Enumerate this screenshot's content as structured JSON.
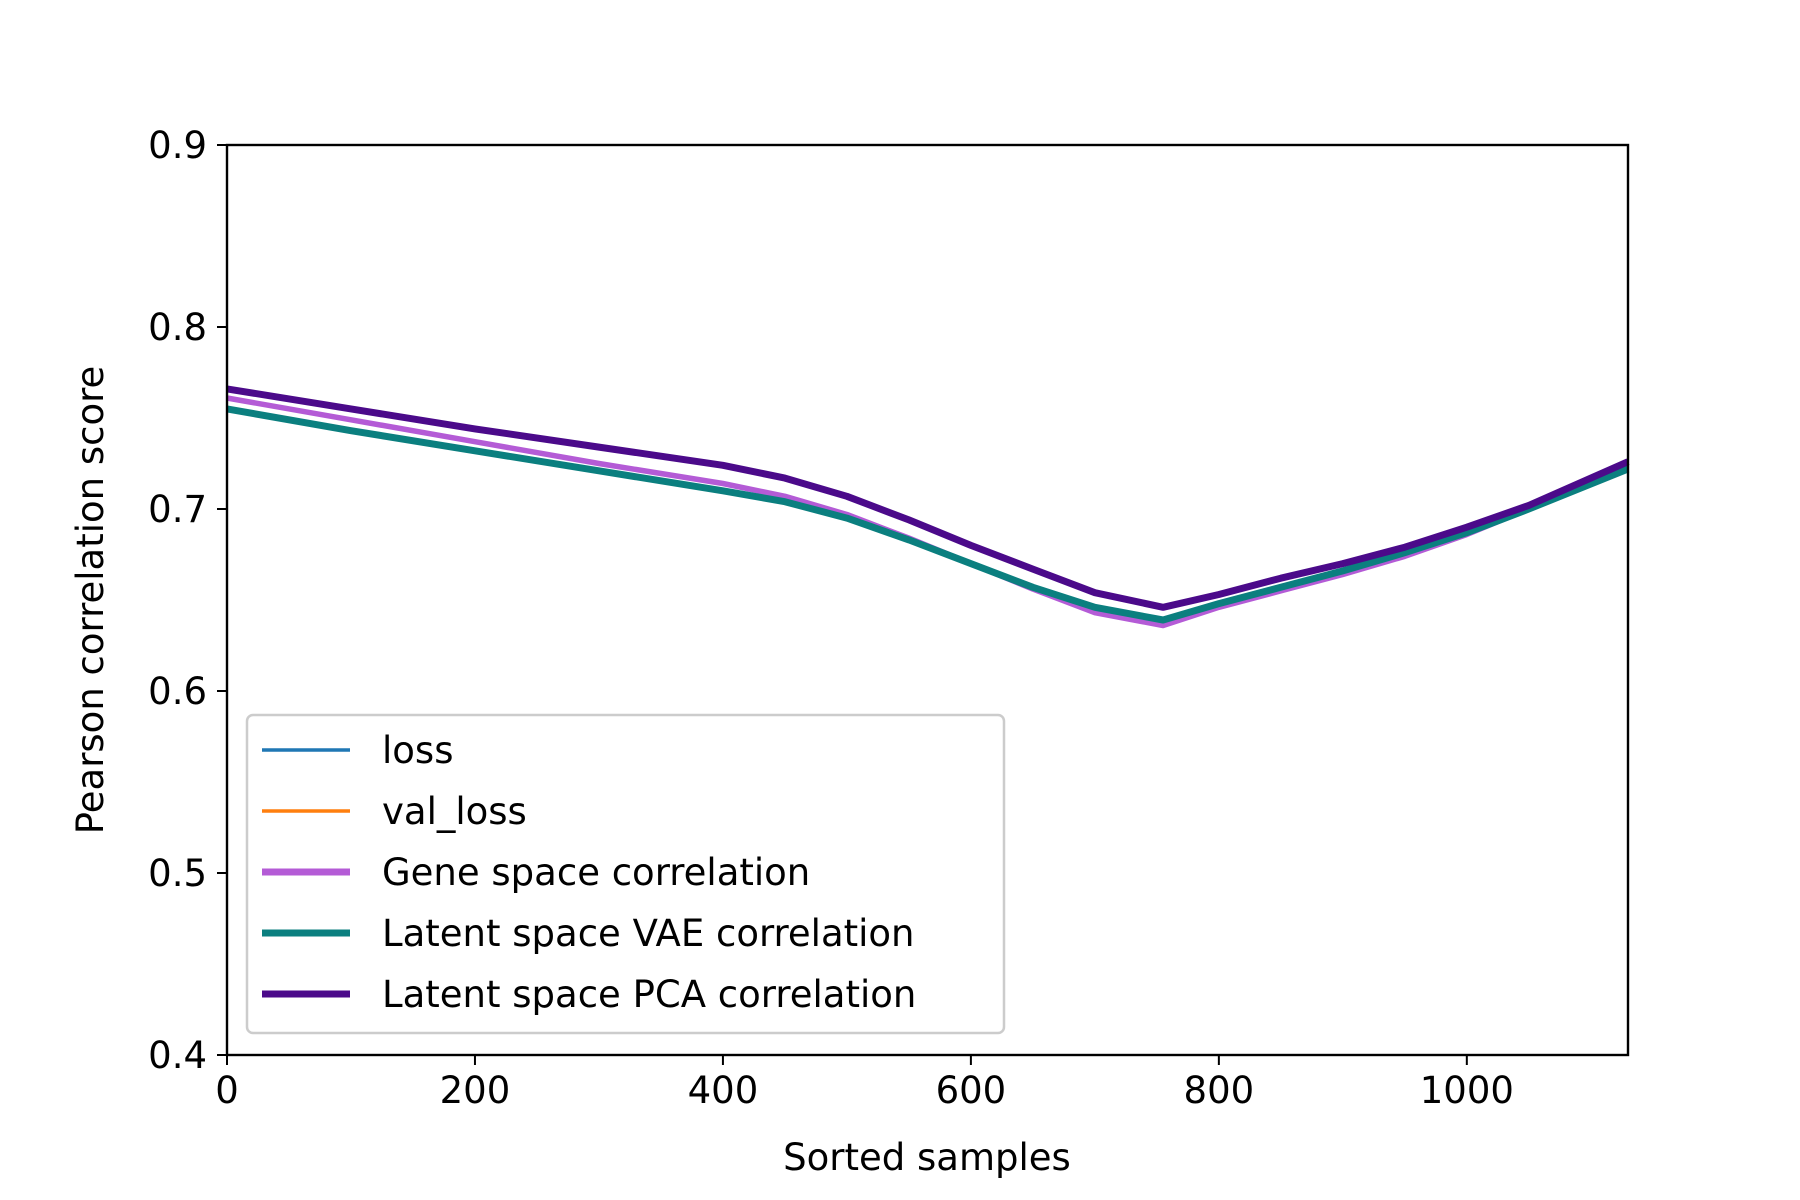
{
  "chart_data": {
    "type": "line",
    "title": "",
    "xlabel": "Sorted samples",
    "ylabel": "Pearson correlation score",
    "xlim": [
      0,
      1130
    ],
    "ylim": [
      0.4,
      0.9
    ],
    "xticks": [
      0,
      200,
      400,
      600,
      800,
      1000
    ],
    "xtick_labels": [
      "0",
      "200",
      "400",
      "600",
      "800",
      "1000"
    ],
    "yticks": [
      0.4,
      0.5,
      0.6,
      0.7,
      0.8,
      0.9
    ],
    "ytick_labels": [
      "0.4",
      "0.5",
      "0.6",
      "0.7",
      "0.8",
      "0.9"
    ],
    "grid": false,
    "legend_position": "lower-left",
    "series": [
      {
        "name": "loss",
        "color": "#1f77b4",
        "x": [],
        "y": []
      },
      {
        "name": "val_loss",
        "color": "#ff7f0e",
        "x": [],
        "y": []
      },
      {
        "name": "Gene space correlation",
        "color": "#b45bd6",
        "x": [
          0,
          100,
          200,
          300,
          400,
          450,
          500,
          550,
          600,
          650,
          700,
          755,
          800,
          850,
          900,
          950,
          1000,
          1050,
          1130
        ],
        "y": [
          0.761,
          0.749,
          0.737,
          0.725,
          0.714,
          0.707,
          0.697,
          0.684,
          0.67,
          0.656,
          0.643,
          0.636,
          0.646,
          0.655,
          0.664,
          0.674,
          0.686,
          0.7,
          0.723
        ]
      },
      {
        "name": "Latent space VAE correlation",
        "color": "#0b7f7f",
        "x": [
          0,
          100,
          200,
          300,
          400,
          450,
          500,
          550,
          600,
          650,
          700,
          755,
          800,
          850,
          900,
          950,
          1000,
          1050,
          1130
        ],
        "y": [
          0.755,
          0.743,
          0.732,
          0.721,
          0.71,
          0.704,
          0.695,
          0.683,
          0.67,
          0.657,
          0.646,
          0.639,
          0.648,
          0.657,
          0.666,
          0.676,
          0.687,
          0.7,
          0.722
        ]
      },
      {
        "name": "Latent space PCA correlation",
        "color": "#4b0a8a",
        "x": [
          0,
          100,
          200,
          300,
          400,
          450,
          500,
          550,
          600,
          650,
          700,
          755,
          800,
          850,
          900,
          950,
          1000,
          1050,
          1130
        ],
        "y": [
          0.766,
          0.755,
          0.744,
          0.734,
          0.724,
          0.717,
          0.707,
          0.694,
          0.68,
          0.667,
          0.654,
          0.646,
          0.653,
          0.662,
          0.67,
          0.679,
          0.69,
          0.702,
          0.726
        ]
      }
    ]
  }
}
